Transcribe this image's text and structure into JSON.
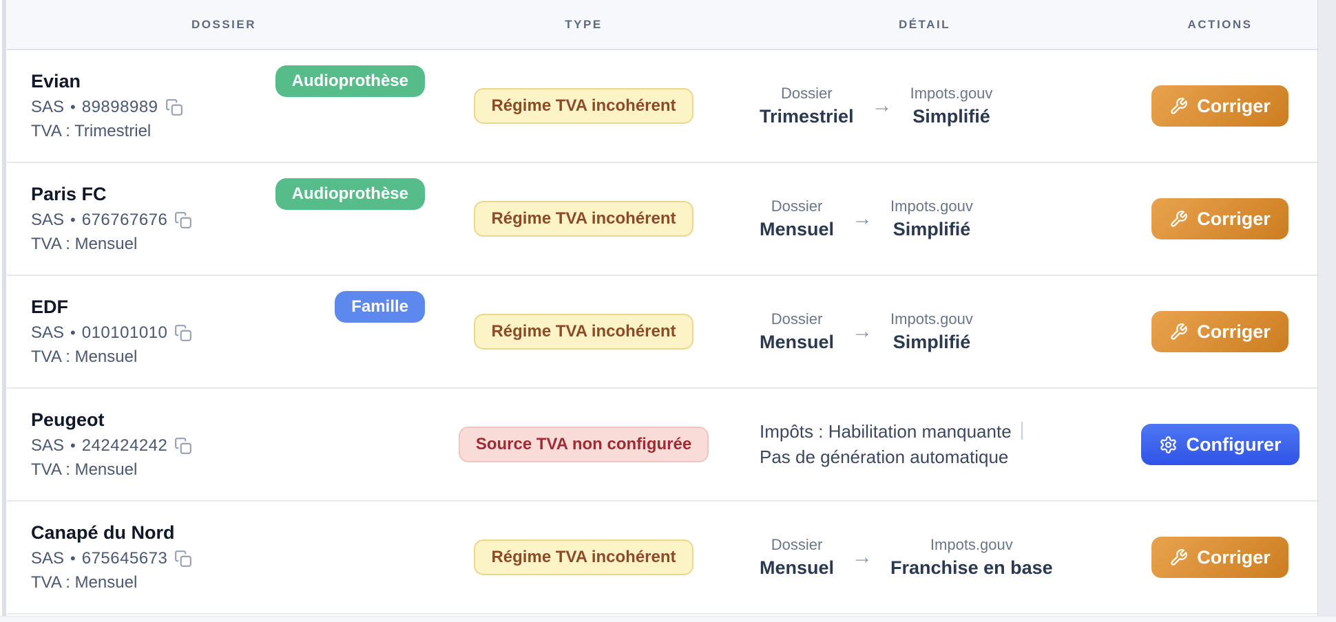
{
  "icons": {
    "arrow": "→",
    "bullet": "•"
  },
  "theme": {
    "header_bg": "#f7f8fb",
    "header_text": "#5d6a80",
    "row_bg": "#ffffff",
    "row_border": "#e7e9ee",
    "name_text": "#101828",
    "meta_text": "#4b5871",
    "label_text": "#6b7687",
    "value_text": "#2a3950",
    "tag_green": "#56bd8a",
    "tag_blue": "#5d89ef",
    "warning_bg": "#fcf4c6",
    "warning_border": "#ebd78d",
    "warning_text": "#8d4a28",
    "danger_bg": "#f9dbd8",
    "danger_border": "#f2c4c1",
    "danger_text": "#9f2b33",
    "btn_warning_from": "#e8a34e",
    "btn_warning_to": "#cd7d20",
    "btn_primary_from": "#4e77f3",
    "btn_primary_to": "#3053e7",
    "arrow_color": "#8c98ab",
    "icon_color": "#98a1b3",
    "divider_color": "#c9cfda"
  },
  "table": {
    "columns": [
      {
        "key": "dossier",
        "label": "DOSSIER"
      },
      {
        "key": "type",
        "label": "TYPE"
      },
      {
        "key": "detail",
        "label": "DÉTAIL"
      },
      {
        "key": "actions",
        "label": "ACTIONS"
      }
    ],
    "rows": [
      {
        "name": "Evian",
        "legal_form": "SAS",
        "siren": "89898989",
        "tva_line": "TVA : Trimestriel",
        "tag": {
          "label": "Audioprothèse",
          "color": "green"
        },
        "status": {
          "label": "Régime TVA incohérent",
          "kind": "warning"
        },
        "detail": {
          "kind": "comparison",
          "left_label": "Dossier",
          "left_value": "Trimestriel",
          "right_label": "Impots.gouv",
          "right_value": "Simplifié"
        },
        "action": {
          "label": "Corriger",
          "kind": "warning",
          "icon": "wrench-icon"
        }
      },
      {
        "name": "Paris FC",
        "legal_form": "SAS",
        "siren": "676767676",
        "tva_line": "TVA : Mensuel",
        "tag": {
          "label": "Audioprothèse",
          "color": "green"
        },
        "status": {
          "label": "Régime TVA incohérent",
          "kind": "warning"
        },
        "detail": {
          "kind": "comparison",
          "left_label": "Dossier",
          "left_value": "Mensuel",
          "right_label": "Impots.gouv",
          "right_value": "Simplifié"
        },
        "action": {
          "label": "Corriger",
          "kind": "warning",
          "icon": "wrench-icon"
        }
      },
      {
        "name": "EDF",
        "legal_form": "SAS",
        "siren": "010101010",
        "tva_line": "TVA : Mensuel",
        "tag": {
          "label": "Famille",
          "color": "blue"
        },
        "status": {
          "label": "Régime TVA incohérent",
          "kind": "warning"
        },
        "detail": {
          "kind": "comparison",
          "left_label": "Dossier",
          "left_value": "Mensuel",
          "right_label": "Impots.gouv",
          "right_value": "Simplifié"
        },
        "action": {
          "label": "Corriger",
          "kind": "warning",
          "icon": "wrench-icon"
        }
      },
      {
        "name": "Peugeot",
        "legal_form": "SAS",
        "siren": "242424242",
        "tva_line": "TVA : Mensuel",
        "tag": null,
        "status": {
          "label": "Source TVA non configurée",
          "kind": "danger"
        },
        "detail": {
          "kind": "issues",
          "issues": [
            "Impôts : Habilitation manquante",
            "Pas de génération automatique"
          ]
        },
        "action": {
          "label": "Configurer",
          "kind": "primary",
          "icon": "gear-icon"
        }
      },
      {
        "name": "Canapé du Nord",
        "legal_form": "SAS",
        "siren": "675645673",
        "tva_line": "TVA : Mensuel",
        "tag": null,
        "status": {
          "label": "Régime TVA incohérent",
          "kind": "warning"
        },
        "detail": {
          "kind": "comparison",
          "left_label": "Dossier",
          "left_value": "Mensuel",
          "right_label": "Impots.gouv",
          "right_value": "Franchise en base"
        },
        "action": {
          "label": "Corriger",
          "kind": "warning",
          "icon": "wrench-icon"
        }
      }
    ]
  }
}
